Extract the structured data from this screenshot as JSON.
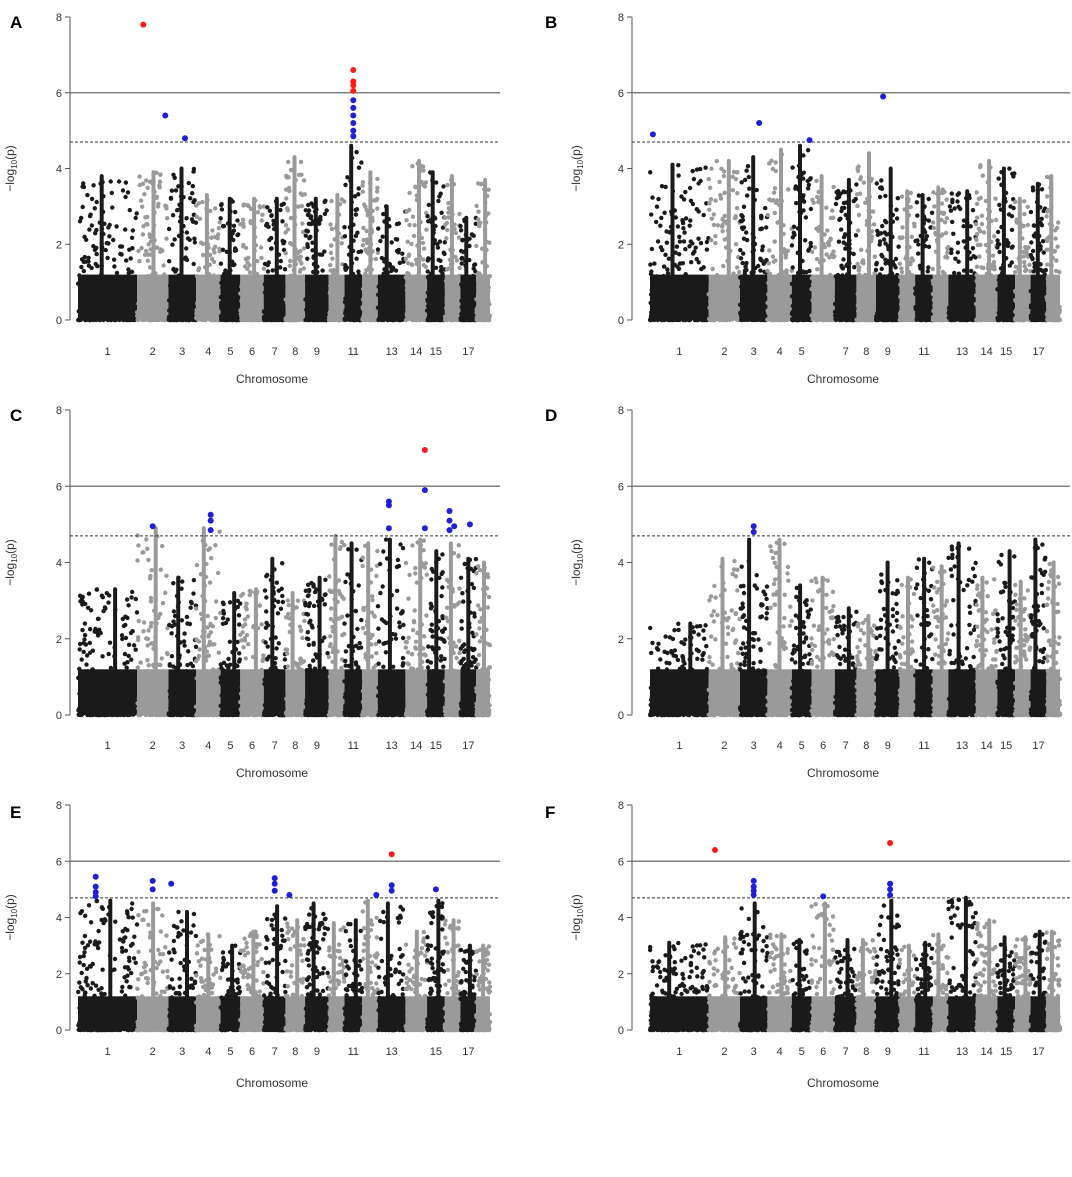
{
  "figure": {
    "description_free": true,
    "colors": {
      "dark": "#1a1a1a",
      "light": "#9a9a9a",
      "suggestive": "#1f1fd6",
      "significant": "#ff1a1a",
      "line": "#808080"
    }
  },
  "chart_data": [
    {
      "type": "scatter",
      "panel": "A",
      "xlabel": "Chromosome",
      "ylabel": "-log10(p)",
      "ylim": [
        0,
        8
      ],
      "yticks": [
        0,
        2,
        4,
        6,
        8
      ],
      "chromosome_ticks": [
        "1",
        "2",
        "3",
        "4",
        "5",
        "6",
        "7",
        "8",
        "9",
        "11",
        "13",
        "14",
        "15",
        "17"
      ],
      "genome_wide_threshold": 6,
      "suggestive_threshold": 4.7,
      "chromosome_peaks": [
        3.8,
        3.9,
        4.0,
        3.3,
        3.2,
        3.2,
        3.2,
        4.3,
        3.2,
        3.3,
        4.6,
        3.9,
        3.0,
        4.2,
        3.9,
        3.8,
        2.7,
        3.7
      ],
      "highlight_points": [
        {
          "chromosome": 2,
          "pos": 0.2,
          "value": 7.8,
          "class": "significant"
        },
        {
          "chromosome": 2,
          "pos": 0.9,
          "value": 5.4,
          "class": "suggestive"
        },
        {
          "chromosome": 3,
          "pos": 0.6,
          "value": 4.8,
          "class": "suggestive"
        },
        {
          "chromosome": 11,
          "pos": 0.5,
          "value": 6.6,
          "class": "significant"
        },
        {
          "chromosome": 11,
          "pos": 0.5,
          "value": 6.3,
          "class": "significant"
        },
        {
          "chromosome": 11,
          "pos": 0.5,
          "value": 6.2,
          "class": "significant"
        },
        {
          "chromosome": 11,
          "pos": 0.5,
          "value": 6.05,
          "class": "significant"
        },
        {
          "chromosome": 11,
          "pos": 0.5,
          "value": 5.8,
          "class": "suggestive"
        },
        {
          "chromosome": 11,
          "pos": 0.5,
          "value": 5.6,
          "class": "suggestive"
        },
        {
          "chromosome": 11,
          "pos": 0.5,
          "value": 5.4,
          "class": "suggestive"
        },
        {
          "chromosome": 11,
          "pos": 0.5,
          "value": 5.2,
          "class": "suggestive"
        },
        {
          "chromosome": 11,
          "pos": 0.5,
          "value": 5.0,
          "class": "suggestive"
        },
        {
          "chromosome": 11,
          "pos": 0.5,
          "value": 4.85,
          "class": "suggestive"
        }
      ]
    },
    {
      "type": "scatter",
      "panel": "B",
      "xlabel": "Chromosome",
      "ylabel": "-log10(p)",
      "ylim": [
        0,
        8
      ],
      "yticks": [
        0,
        2,
        4,
        6,
        8
      ],
      "chromosome_ticks": [
        "1",
        "2",
        "3",
        "4",
        "5",
        "7",
        "8",
        "9",
        "11",
        "13",
        "14",
        "15",
        "17"
      ],
      "genome_wide_threshold": 6,
      "suggestive_threshold": 4.7,
      "chromosome_peaks": [
        4.1,
        4.2,
        4.3,
        4.5,
        4.6,
        3.8,
        3.7,
        4.4,
        4.0,
        3.4,
        3.3,
        3.5,
        3.4,
        4.2,
        4.0,
        3.2,
        3.6,
        3.8
      ],
      "highlight_points": [
        {
          "chromosome": 1,
          "pos": 0.05,
          "value": 4.9,
          "class": "suggestive"
        },
        {
          "chromosome": 3,
          "pos": 0.7,
          "value": 5.2,
          "class": "suggestive"
        },
        {
          "chromosome": 5,
          "pos": 0.9,
          "value": 4.75,
          "class": "suggestive"
        },
        {
          "chromosome": 9,
          "pos": 0.3,
          "value": 5.9,
          "class": "suggestive"
        }
      ]
    },
    {
      "type": "scatter",
      "panel": "C",
      "xlabel": "Chromosome",
      "ylabel": "-log10(p)",
      "ylim": [
        0,
        8
      ],
      "yticks": [
        0,
        2,
        4,
        6,
        8
      ],
      "chromosome_ticks": [
        "1",
        "2",
        "3",
        "4",
        "5",
        "6",
        "7",
        "8",
        "9",
        "11",
        "13",
        "14",
        "15",
        "17"
      ],
      "genome_wide_threshold": 6,
      "suggestive_threshold": 4.7,
      "chromosome_peaks": [
        3.3,
        4.9,
        3.6,
        4.9,
        3.2,
        3.3,
        4.1,
        3.2,
        3.6,
        4.7,
        4.5,
        4.5,
        4.6,
        4.6,
        4.3,
        4.5,
        4.1,
        4.0
      ],
      "highlight_points": [
        {
          "chromosome": 2,
          "pos": 0.5,
          "value": 4.95,
          "class": "suggestive"
        },
        {
          "chromosome": 4,
          "pos": 0.6,
          "value": 5.25,
          "class": "suggestive"
        },
        {
          "chromosome": 4,
          "pos": 0.6,
          "value": 5.1,
          "class": "suggestive"
        },
        {
          "chromosome": 4,
          "pos": 0.6,
          "value": 4.85,
          "class": "suggestive"
        },
        {
          "chromosome": 13,
          "pos": 0.4,
          "value": 5.6,
          "class": "suggestive"
        },
        {
          "chromosome": 13,
          "pos": 0.4,
          "value": 5.5,
          "class": "suggestive"
        },
        {
          "chromosome": 13,
          "pos": 0.4,
          "value": 4.9,
          "class": "suggestive"
        },
        {
          "chromosome": 14,
          "pos": 0.9,
          "value": 6.95,
          "class": "significant"
        },
        {
          "chromosome": 14,
          "pos": 0.9,
          "value": 5.9,
          "class": "suggestive"
        },
        {
          "chromosome": 14,
          "pos": 0.9,
          "value": 4.9,
          "class": "suggestive"
        },
        {
          "chromosome": 16,
          "pos": 0.3,
          "value": 5.35,
          "class": "suggestive"
        },
        {
          "chromosome": 16,
          "pos": 0.3,
          "value": 5.1,
          "class": "suggestive"
        },
        {
          "chromosome": 16,
          "pos": 0.3,
          "value": 4.85,
          "class": "suggestive"
        },
        {
          "chromosome": 16,
          "pos": 0.6,
          "value": 4.95,
          "class": "suggestive"
        },
        {
          "chromosome": 17,
          "pos": 0.6,
          "value": 5.0,
          "class": "suggestive"
        }
      ]
    },
    {
      "type": "scatter",
      "panel": "D",
      "xlabel": "Chromosome",
      "ylabel": "-log10(p)",
      "ylim": [
        0,
        8
      ],
      "yticks": [
        0,
        2,
        4,
        6,
        8
      ],
      "chromosome_ticks": [
        "1",
        "2",
        "3",
        "4",
        "5",
        "6",
        "7",
        "8",
        "9",
        "11",
        "13",
        "14",
        "15",
        "17"
      ],
      "genome_wide_threshold": 6,
      "suggestive_threshold": 4.7,
      "chromosome_peaks": [
        2.4,
        4.1,
        4.6,
        4.6,
        3.4,
        3.6,
        2.8,
        2.6,
        4.0,
        3.6,
        4.1,
        3.9,
        4.5,
        3.6,
        4.3,
        3.5,
        4.6,
        4.0
      ],
      "highlight_points": [
        {
          "chromosome": 3,
          "pos": 0.5,
          "value": 4.95,
          "class": "suggestive"
        },
        {
          "chromosome": 3,
          "pos": 0.5,
          "value": 4.8,
          "class": "suggestive"
        }
      ]
    },
    {
      "type": "scatter",
      "panel": "E",
      "xlabel": "Chromosome",
      "ylabel": "-log10(p)",
      "ylim": [
        0,
        8
      ],
      "yticks": [
        0,
        2,
        4,
        6,
        8
      ],
      "chromosome_ticks": [
        "1",
        "2",
        "3",
        "4",
        "5",
        "6",
        "7",
        "8",
        "9",
        "11",
        "13",
        "15",
        "17"
      ],
      "genome_wide_threshold": 6,
      "suggestive_threshold": 4.7,
      "chromosome_peaks": [
        4.6,
        4.5,
        4.2,
        3.4,
        3.0,
        3.5,
        4.4,
        3.9,
        4.5,
        3.8,
        3.9,
        4.6,
        4.5,
        3.5,
        4.6,
        3.9,
        3.0,
        3.0
      ],
      "highlight_points": [
        {
          "chromosome": 1,
          "pos": 0.3,
          "value": 5.45,
          "class": "suggestive"
        },
        {
          "chromosome": 1,
          "pos": 0.3,
          "value": 5.1,
          "class": "suggestive"
        },
        {
          "chromosome": 1,
          "pos": 0.3,
          "value": 4.9,
          "class": "suggestive"
        },
        {
          "chromosome": 1,
          "pos": 0.3,
          "value": 4.75,
          "class": "suggestive"
        },
        {
          "chromosome": 2,
          "pos": 0.5,
          "value": 5.3,
          "class": "suggestive"
        },
        {
          "chromosome": 2,
          "pos": 0.5,
          "value": 5.0,
          "class": "suggestive"
        },
        {
          "chromosome": 3,
          "pos": 0.1,
          "value": 5.2,
          "class": "suggestive"
        },
        {
          "chromosome": 7,
          "pos": 0.5,
          "value": 5.4,
          "class": "suggestive"
        },
        {
          "chromosome": 7,
          "pos": 0.5,
          "value": 5.2,
          "class": "suggestive"
        },
        {
          "chromosome": 7,
          "pos": 0.5,
          "value": 4.95,
          "class": "suggestive"
        },
        {
          "chromosome": 8,
          "pos": 0.2,
          "value": 4.8,
          "class": "suggestive"
        },
        {
          "chromosome": 12,
          "pos": 0.9,
          "value": 4.8,
          "class": "suggestive"
        },
        {
          "chromosome": 13,
          "pos": 0.5,
          "value": 6.25,
          "class": "significant"
        },
        {
          "chromosome": 13,
          "pos": 0.5,
          "value": 5.15,
          "class": "suggestive"
        },
        {
          "chromosome": 13,
          "pos": 0.5,
          "value": 4.95,
          "class": "suggestive"
        },
        {
          "chromosome": 15,
          "pos": 0.5,
          "value": 5.0,
          "class": "suggestive"
        }
      ]
    },
    {
      "type": "scatter",
      "panel": "F",
      "xlabel": "Chromosome",
      "ylabel": "-log10(p)",
      "ylim": [
        0,
        8
      ],
      "yticks": [
        0,
        2,
        4,
        6,
        8
      ],
      "chromosome_ticks": [
        "1",
        "2",
        "3",
        "4",
        "5",
        "6",
        "7",
        "8",
        "9",
        "11",
        "13",
        "14",
        "15",
        "17"
      ],
      "genome_wide_threshold": 6,
      "suggestive_threshold": 4.7,
      "chromosome_peaks": [
        3.1,
        3.3,
        4.5,
        3.4,
        3.2,
        4.5,
        3.2,
        3.2,
        4.6,
        3.0,
        3.1,
        3.4,
        4.7,
        3.9,
        3.3,
        3.3,
        3.5,
        3.5
      ],
      "highlight_points": [
        {
          "chromosome": 2,
          "pos": 0.2,
          "value": 6.4,
          "class": "significant"
        },
        {
          "chromosome": 3,
          "pos": 0.5,
          "value": 5.3,
          "class": "suggestive"
        },
        {
          "chromosome": 3,
          "pos": 0.5,
          "value": 5.1,
          "class": "suggestive"
        },
        {
          "chromosome": 3,
          "pos": 0.5,
          "value": 4.95,
          "class": "suggestive"
        },
        {
          "chromosome": 3,
          "pos": 0.5,
          "value": 4.8,
          "class": "suggestive"
        },
        {
          "chromosome": 6,
          "pos": 0.5,
          "value": 4.75,
          "class": "suggestive"
        },
        {
          "chromosome": 9,
          "pos": 0.6,
          "value": 6.65,
          "class": "significant"
        },
        {
          "chromosome": 9,
          "pos": 0.6,
          "value": 5.2,
          "class": "suggestive"
        },
        {
          "chromosome": 9,
          "pos": 0.6,
          "value": 5.0,
          "class": "suggestive"
        },
        {
          "chromosome": 9,
          "pos": 0.6,
          "value": 4.8,
          "class": "suggestive"
        }
      ]
    }
  ]
}
